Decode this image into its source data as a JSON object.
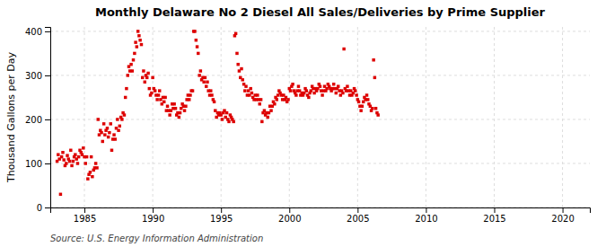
{
  "chart_data": {
    "type": "scatter",
    "title": "Monthly Delaware No 2 Diesel All Sales/Deliveries by Prime Supplier",
    "ylabel": "Thousand Gallons per Day",
    "source": "Source: U.S. Energy Information Administration",
    "color": "#dd0000",
    "marker": "square",
    "grid": true,
    "xlim": [
      1982.5,
      2022
    ],
    "ylim": [
      0,
      410
    ],
    "xticks": [
      1985,
      1990,
      1995,
      2000,
      2005,
      2010,
      2015,
      2020
    ],
    "yticks": [
      0,
      100,
      200,
      300,
      400
    ],
    "x": [
      1983.0,
      1983.08,
      1983.17,
      1983.25,
      1983.33,
      1983.42,
      1983.5,
      1983.58,
      1983.67,
      1983.75,
      1983.83,
      1983.92,
      1984.0,
      1984.08,
      1984.17,
      1984.25,
      1984.33,
      1984.42,
      1984.5,
      1984.58,
      1984.67,
      1984.75,
      1984.83,
      1984.92,
      1985.0,
      1985.08,
      1985.17,
      1985.25,
      1985.33,
      1985.42,
      1985.5,
      1985.58,
      1985.67,
      1985.75,
      1985.83,
      1985.92,
      1986.0,
      1986.08,
      1986.17,
      1986.25,
      1986.33,
      1986.42,
      1986.5,
      1986.58,
      1986.67,
      1986.75,
      1986.83,
      1986.92,
      1987.0,
      1987.08,
      1987.17,
      1987.25,
      1987.33,
      1987.42,
      1987.5,
      1987.58,
      1987.67,
      1987.75,
      1987.83,
      1987.92,
      1988.0,
      1988.08,
      1988.17,
      1988.25,
      1988.33,
      1988.42,
      1988.5,
      1988.58,
      1988.67,
      1988.75,
      1988.83,
      1988.92,
      1989.0,
      1989.08,
      1989.17,
      1989.25,
      1989.33,
      1989.42,
      1989.5,
      1989.58,
      1989.67,
      1989.75,
      1989.83,
      1989.92,
      1990.0,
      1990.08,
      1990.17,
      1990.25,
      1990.33,
      1990.42,
      1990.5,
      1990.58,
      1990.67,
      1990.75,
      1990.83,
      1990.92,
      1991.0,
      1991.08,
      1991.17,
      1991.25,
      1991.33,
      1991.42,
      1991.5,
      1991.58,
      1991.67,
      1991.75,
      1991.83,
      1991.92,
      1992.0,
      1992.08,
      1992.17,
      1992.25,
      1992.33,
      1992.42,
      1992.5,
      1992.58,
      1992.67,
      1992.75,
      1992.83,
      1992.92,
      1993.0,
      1993.08,
      1993.17,
      1993.25,
      1993.33,
      1993.42,
      1993.5,
      1993.58,
      1993.67,
      1993.75,
      1993.83,
      1993.92,
      1994.0,
      1994.08,
      1994.17,
      1994.25,
      1994.33,
      1994.42,
      1994.5,
      1994.58,
      1994.67,
      1994.75,
      1994.83,
      1994.92,
      1995.0,
      1995.08,
      1995.17,
      1995.25,
      1995.33,
      1995.42,
      1995.5,
      1995.58,
      1995.67,
      1995.75,
      1995.83,
      1995.92,
      1996.0,
      1996.08,
      1996.17,
      1996.25,
      1996.33,
      1996.42,
      1996.5,
      1996.58,
      1996.67,
      1996.75,
      1996.83,
      1996.92,
      1997.0,
      1997.08,
      1997.17,
      1997.25,
      1997.33,
      1997.42,
      1997.5,
      1997.58,
      1997.67,
      1997.75,
      1997.83,
      1997.92,
      1998.0,
      1998.08,
      1998.17,
      1998.25,
      1998.33,
      1998.42,
      1998.5,
      1998.58,
      1998.67,
      1998.75,
      1998.83,
      1998.92,
      1999.0,
      1999.08,
      1999.17,
      1999.25,
      1999.33,
      1999.42,
      1999.5,
      1999.58,
      1999.67,
      1999.75,
      1999.83,
      1999.92,
      2000.0,
      2000.08,
      2000.17,
      2000.25,
      2000.33,
      2000.42,
      2000.5,
      2000.58,
      2000.67,
      2000.75,
      2000.83,
      2000.92,
      2001.0,
      2001.08,
      2001.17,
      2001.25,
      2001.33,
      2001.42,
      2001.5,
      2001.58,
      2001.67,
      2001.75,
      2001.83,
      2001.92,
      2002.0,
      2002.08,
      2002.17,
      2002.25,
      2002.33,
      2002.42,
      2002.5,
      2002.58,
      2002.67,
      2002.75,
      2002.83,
      2002.92,
      2003.0,
      2003.08,
      2003.17,
      2003.25,
      2003.33,
      2003.42,
      2003.5,
      2003.58,
      2003.67,
      2003.75,
      2003.83,
      2003.92,
      2004.0,
      2004.08,
      2004.17,
      2004.25,
      2004.33,
      2004.42,
      2004.5,
      2004.58,
      2004.67,
      2004.75,
      2004.83,
      2004.92,
      2005.0,
      2005.08,
      2005.17,
      2005.25,
      2005.33,
      2005.42,
      2005.5,
      2005.58,
      2005.67,
      2005.75,
      2005.83,
      2005.92,
      2006.0,
      2006.08,
      2006.17,
      2006.25,
      2006.33,
      2006.42,
      2006.5
    ],
    "values": [
      105,
      120,
      110,
      30,
      115,
      125,
      108,
      95,
      100,
      118,
      110,
      105,
      130,
      95,
      105,
      115,
      120,
      110,
      100,
      115,
      130,
      125,
      120,
      135,
      115,
      100,
      115,
      65,
      75,
      80,
      115,
      70,
      85,
      90,
      100,
      90,
      200,
      165,
      175,
      170,
      150,
      190,
      165,
      175,
      180,
      160,
      170,
      190,
      130,
      155,
      165,
      155,
      180,
      200,
      175,
      185,
      205,
      200,
      215,
      210,
      250,
      270,
      300,
      320,
      310,
      325,
      310,
      335,
      350,
      375,
      365,
      400,
      390,
      380,
      370,
      295,
      310,
      285,
      300,
      295,
      305,
      270,
      255,
      260,
      295,
      270,
      265,
      255,
      245,
      255,
      265,
      245,
      235,
      250,
      240,
      250,
      220,
      230,
      220,
      210,
      220,
      235,
      225,
      235,
      225,
      210,
      215,
      205,
      215,
      225,
      235,
      230,
      220,
      230,
      245,
      255,
      245,
      255,
      265,
      265,
      400,
      400,
      380,
      365,
      350,
      300,
      310,
      290,
      295,
      285,
      295,
      275,
      285,
      265,
      255,
      265,
      255,
      245,
      240,
      220,
      205,
      215,
      210,
      215,
      210,
      200,
      215,
      220,
      205,
      215,
      200,
      195,
      210,
      205,
      200,
      195,
      390,
      395,
      350,
      325,
      310,
      295,
      315,
      290,
      280,
      265,
      275,
      255,
      265,
      255,
      270,
      260,
      250,
      245,
      255,
      245,
      255,
      245,
      235,
      245,
      195,
      215,
      220,
      210,
      215,
      205,
      215,
      230,
      220,
      230,
      240,
      235,
      250,
      245,
      255,
      265,
      260,
      255,
      245,
      255,
      245,
      250,
      240,
      245,
      270,
      265,
      275,
      280,
      265,
      260,
      255,
      265,
      275,
      265,
      255,
      260,
      255,
      260,
      270,
      265,
      255,
      250,
      260,
      265,
      275,
      270,
      260,
      270,
      265,
      270,
      280,
      275,
      265,
      255,
      265,
      275,
      265,
      270,
      280,
      275,
      270,
      265,
      270,
      280,
      270,
      260,
      270,
      275,
      265,
      255,
      265,
      260,
      360,
      270,
      265,
      275,
      265,
      255,
      265,
      255,
      260,
      270,
      265,
      255,
      245,
      240,
      230,
      220,
      230,
      240,
      250,
      245,
      255,
      245,
      235,
      230,
      220,
      225,
      335,
      295,
      225,
      215,
      210
    ]
  }
}
